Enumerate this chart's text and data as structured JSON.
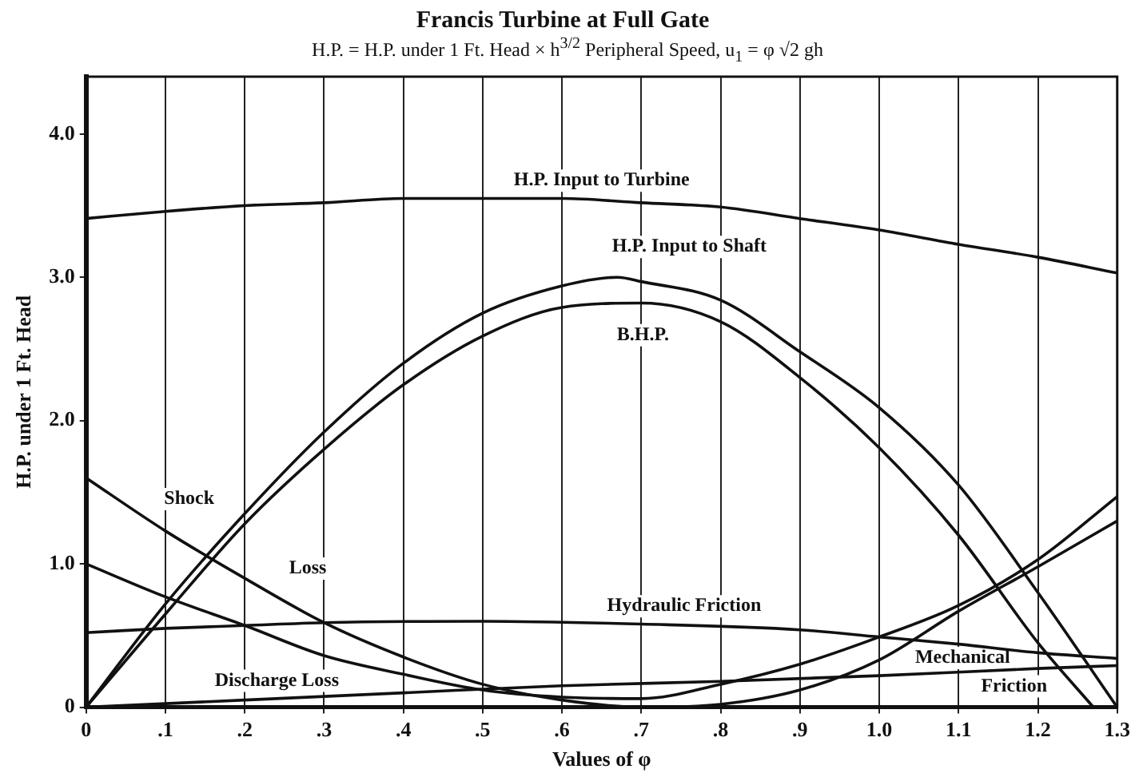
{
  "chart_data": {
    "type": "line",
    "title": "Francis Turbine at Full Gate",
    "subtitle": "H.P. = H.P. under 1 Ft. Head × h$^{3/2}$     Peripheral Speed, u$_{1}$ = φ √2 gh",
    "xlabel": "Values of φ",
    "ylabel": "H.P. under 1 Ft. Head",
    "xlim": [
      0,
      1.3
    ],
    "ylim": [
      0,
      4.4
    ],
    "xticks": [
      0,
      {
        "value": 0.1,
        "label": ".1"
      },
      {
        "value": 0.2,
        "label": ".2"
      },
      {
        "value": 0.3,
        "label": ".3"
      },
      {
        "value": 0.4,
        "label": ".4"
      },
      {
        "value": 0.5,
        "label": ".5"
      },
      {
        "value": 0.6,
        "label": ".6"
      },
      {
        "value": 0.7,
        "label": ".7"
      },
      {
        "value": 0.8,
        "label": ".8"
      },
      {
        "value": 0.9,
        "label": ".9"
      },
      {
        "value": 1.0,
        "label": "1.0"
      },
      {
        "value": 1.1,
        "label": "1.1"
      },
      {
        "value": 1.2,
        "label": "1.2"
      },
      {
        "value": 1.3,
        "label": "1.3"
      }
    ],
    "yticks": [
      0,
      {
        "value": 1,
        "label": "1.0"
      },
      {
        "value": 2,
        "label": "2.0"
      },
      {
        "value": 3,
        "label": "3.0"
      },
      {
        "value": 4,
        "label": "4.0"
      }
    ],
    "grid": "x",
    "legend": false,
    "marker": "none",
    "line_style": "solid",
    "series": [
      {
        "color": "#111111",
        "x": [
          0,
          0.1,
          0.2,
          0.3,
          0.4,
          0.5,
          0.6,
          0.7,
          0.8,
          0.9,
          1.0,
          1.1,
          1.2,
          1.3
        ],
        "values": [
          3.41,
          3.46,
          3.5,
          3.52,
          3.55,
          3.55,
          3.55,
          3.52,
          3.49,
          3.41,
          3.33,
          3.23,
          3.14,
          3.03
        ]
      },
      {
        "color": "#111111",
        "x": [
          0,
          0.1,
          0.2,
          0.3,
          0.4,
          0.5,
          0.6,
          0.67,
          0.7,
          0.8,
          0.9,
          1.0,
          1.1,
          1.2,
          1.3
        ],
        "values": [
          0,
          0.72,
          1.35,
          1.92,
          2.4,
          2.75,
          2.94,
          3.0,
          2.97,
          2.84,
          2.48,
          2.09,
          1.55,
          0.8,
          0
        ]
      },
      {
        "color": "#111111",
        "x": [
          0,
          0.1,
          0.2,
          0.3,
          0.4,
          0.5,
          0.6,
          0.7,
          0.8,
          0.9,
          1.0,
          1.1,
          1.2,
          1.27
        ],
        "values": [
          0,
          0.65,
          1.28,
          1.8,
          2.25,
          2.59,
          2.79,
          2.82,
          2.69,
          2.3,
          1.81,
          1.2,
          0.45,
          0
        ]
      },
      {
        "color": "#111111",
        "x": [
          0,
          0.1,
          0.2,
          0.3,
          0.4,
          0.5,
          0.6,
          0.7,
          0.8,
          0.9,
          1.0,
          1.1,
          1.2,
          1.3
        ],
        "values": [
          1.6,
          1.23,
          0.9,
          0.59,
          0.35,
          0.16,
          0.05,
          0,
          0.02,
          0.12,
          0.33,
          0.67,
          0.98,
          1.3
        ]
      },
      {
        "color": "#111111",
        "x": [
          0,
          0.1,
          0.2,
          0.3,
          0.4,
          0.5,
          0.6,
          0.7,
          0.8,
          0.9,
          1.0,
          1.1,
          1.2,
          1.3
        ],
        "values": [
          1.0,
          0.77,
          0.57,
          0.36,
          0.23,
          0.12,
          0.07,
          0.06,
          0.16,
          0.3,
          0.49,
          0.71,
          1.03,
          1.47
        ]
      },
      {
        "color": "#111111",
        "x": [
          0,
          0.1,
          0.2,
          0.3,
          0.5,
          0.7,
          0.9,
          1.0,
          1.1,
          1.2,
          1.3
        ],
        "values": [
          0.52,
          0.55,
          0.57,
          0.59,
          0.6,
          0.58,
          0.54,
          0.49,
          0.44,
          0.38,
          0.34
        ]
      },
      {
        "color": "#111111",
        "x": [
          0,
          0.2,
          0.4,
          0.6,
          0.8,
          1.0,
          1.2,
          1.3
        ],
        "values": [
          0,
          0.05,
          0.1,
          0.15,
          0.18,
          0.22,
          0.27,
          0.29
        ]
      }
    ],
    "annotations": [
      "H.P. Input to Turbine",
      "H.P. Input to Shaft",
      "B.H.P.",
      "Shock",
      "Loss",
      "Hydraulic Friction",
      "Discharge Loss",
      "Mechanical",
      "Friction"
    ]
  }
}
